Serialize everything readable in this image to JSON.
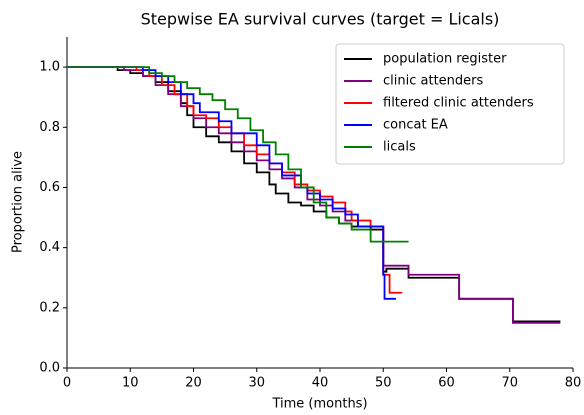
{
  "chart_data": {
    "type": "line",
    "step": "post",
    "title": "Stepwise EA survival curves (target = Licals)",
    "x_label": "Time (months)",
    "y_label": "Proportion alive",
    "xlim": [
      0,
      80
    ],
    "ylim": [
      0,
      1.1
    ],
    "xticks": [
      0,
      10,
      20,
      30,
      40,
      50,
      60,
      70,
      80
    ],
    "yticks": [
      {
        "value": 0,
        "label": "0.0"
      },
      0.2,
      0.4,
      0.6,
      0.8,
      {
        "value": 1,
        "label": "1.0"
      }
    ],
    "legend": "upper right",
    "series": [
      {
        "name": "population register",
        "color": "#000000",
        "x": [
          0,
          8,
          10,
          12,
          14,
          16,
          18,
          19,
          20,
          22,
          24,
          26,
          28,
          30,
          32,
          33,
          35,
          37,
          39,
          41,
          43,
          45,
          48,
          50,
          50.5,
          54,
          62,
          70.5,
          78
        ],
        "values": [
          1.0,
          0.99,
          0.98,
          0.97,
          0.95,
          0.92,
          0.88,
          0.84,
          0.8,
          0.77,
          0.75,
          0.72,
          0.68,
          0.65,
          0.61,
          0.58,
          0.55,
          0.54,
          0.52,
          0.5,
          0.48,
          0.47,
          0.46,
          0.32,
          0.33,
          0.3,
          0.23,
          0.155,
          0.155
        ]
      },
      {
        "name": "clinic attenders",
        "color": "#800080",
        "x": [
          0,
          9,
          12,
          14,
          16,
          18,
          20,
          22,
          24,
          26,
          28,
          30,
          32,
          34,
          36,
          38,
          40,
          42,
          44,
          46,
          50,
          54,
          62,
          70.5,
          78
        ],
        "values": [
          1.0,
          0.99,
          0.97,
          0.94,
          0.91,
          0.87,
          0.83,
          0.8,
          0.78,
          0.75,
          0.72,
          0.69,
          0.66,
          0.63,
          0.6,
          0.56,
          0.54,
          0.52,
          0.49,
          0.47,
          0.34,
          0.31,
          0.23,
          0.15,
          0.15
        ]
      },
      {
        "name": "filtered clinic attenders",
        "color": "#ff0000",
        "x": [
          0,
          11,
          13,
          15,
          17,
          19,
          20,
          22,
          24,
          26,
          28,
          30,
          32,
          34,
          36,
          38,
          40,
          42,
          44,
          45,
          48,
          50,
          51,
          53
        ],
        "values": [
          1.0,
          0.99,
          0.97,
          0.94,
          0.91,
          0.87,
          0.84,
          0.83,
          0.8,
          0.78,
          0.74,
          0.71,
          0.68,
          0.65,
          0.61,
          0.59,
          0.57,
          0.55,
          0.52,
          0.49,
          0.47,
          0.31,
          0.25,
          0.25
        ]
      },
      {
        "name": "concat EA",
        "color": "#0000ff",
        "x": [
          0,
          12,
          14,
          16,
          18,
          20,
          21,
          24,
          26,
          30,
          32,
          34,
          37,
          38,
          40,
          42,
          44,
          46,
          50,
          50.2,
          52
        ],
        "values": [
          1.0,
          0.99,
          0.97,
          0.95,
          0.91,
          0.88,
          0.85,
          0.82,
          0.78,
          0.74,
          0.68,
          0.64,
          0.6,
          0.58,
          0.56,
          0.53,
          0.51,
          0.47,
          0.31,
          0.23,
          0.23
        ]
      },
      {
        "name": "licals",
        "color": "#008000",
        "x": [
          0,
          13,
          15,
          17,
          19,
          21,
          23,
          25,
          27,
          29,
          31,
          33,
          35,
          37,
          39,
          41,
          43,
          45,
          48,
          54
        ],
        "values": [
          1.0,
          0.98,
          0.97,
          0.95,
          0.93,
          0.91,
          0.89,
          0.86,
          0.83,
          0.79,
          0.75,
          0.71,
          0.66,
          0.6,
          0.55,
          0.5,
          0.48,
          0.46,
          0.42,
          0.42
        ]
      }
    ]
  }
}
